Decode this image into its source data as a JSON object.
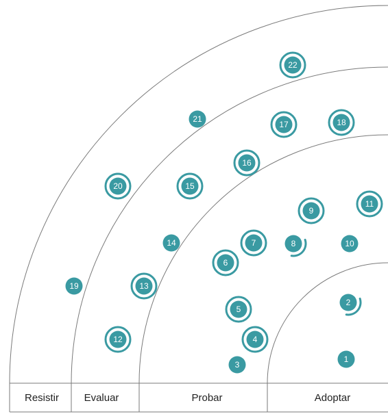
{
  "colors": {
    "blip": "#3a9aa2",
    "lines": "#7a7a7a",
    "text": "#222222",
    "background": "#ffffff"
  },
  "rings": [
    {
      "id": "adoptar",
      "label": "Adoptar"
    },
    {
      "id": "probar",
      "label": "Probar"
    },
    {
      "id": "evaluar",
      "label": "Evaluar"
    },
    {
      "id": "resistir",
      "label": "Resistir"
    }
  ],
  "blips": [
    {
      "num": "1",
      "marker": "dot"
    },
    {
      "num": "2",
      "marker": "half-ring"
    },
    {
      "num": "3",
      "marker": "dot"
    },
    {
      "num": "4",
      "marker": "ring"
    },
    {
      "num": "5",
      "marker": "ring"
    },
    {
      "num": "6",
      "marker": "ring"
    },
    {
      "num": "7",
      "marker": "ring"
    },
    {
      "num": "8",
      "marker": "half-ring"
    },
    {
      "num": "9",
      "marker": "ring"
    },
    {
      "num": "10",
      "marker": "dot"
    },
    {
      "num": "11",
      "marker": "ring"
    },
    {
      "num": "12",
      "marker": "ring"
    },
    {
      "num": "13",
      "marker": "ring"
    },
    {
      "num": "14",
      "marker": "dot"
    },
    {
      "num": "15",
      "marker": "ring"
    },
    {
      "num": "16",
      "marker": "ring"
    },
    {
      "num": "17",
      "marker": "ring"
    },
    {
      "num": "18",
      "marker": "ring"
    },
    {
      "num": "19",
      "marker": "dot"
    },
    {
      "num": "20",
      "marker": "ring"
    },
    {
      "num": "21",
      "marker": "dot"
    },
    {
      "num": "22",
      "marker": "ring"
    }
  ]
}
